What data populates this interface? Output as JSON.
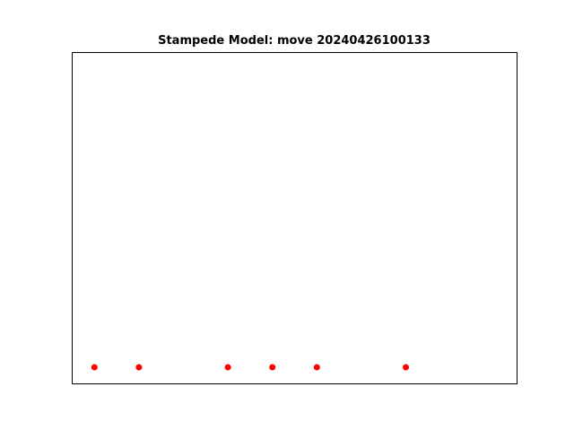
{
  "chart_data": {
    "type": "scatter",
    "title": "Stampede Model: move 20240426100133",
    "xlabel": "",
    "ylabel": "",
    "xlim": [
      0,
      20
    ],
    "ylim": [
      0,
      15
    ],
    "axis_ticks_visible": false,
    "grid": false,
    "marker_color": "#ff0000",
    "series": [
      {
        "x": [
          1,
          3,
          7,
          9,
          11,
          15
        ],
        "y": [
          0.75,
          0.75,
          0.75,
          0.75,
          0.75,
          0.75
        ]
      }
    ]
  }
}
